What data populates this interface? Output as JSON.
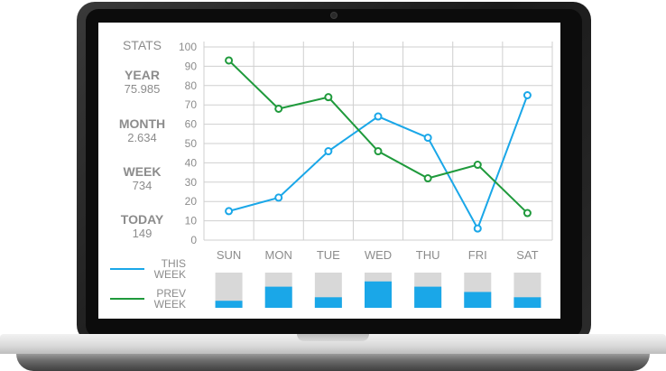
{
  "stats": {
    "title": "STATS",
    "items": [
      {
        "label": "YEAR",
        "value": "75.985"
      },
      {
        "label": "MONTH",
        "value": "2.634"
      },
      {
        "label": "WEEK",
        "value": "734"
      },
      {
        "label": "TODAY",
        "value": "149"
      }
    ]
  },
  "legend": {
    "this_week": {
      "line1": "THIS",
      "line2": "WEEK",
      "color": "#1aa7e8"
    },
    "prev_week": {
      "line1": "PREV",
      "line2": "WEEK",
      "color": "#1f9a3c"
    }
  },
  "chart_data": {
    "type": "line",
    "categories": [
      "SUN",
      "MON",
      "TUE",
      "WED",
      "THU",
      "FRI",
      "SAT"
    ],
    "yticks": [
      "0",
      "10",
      "20",
      "30",
      "40",
      "50",
      "60",
      "70",
      "80",
      "90",
      "100"
    ],
    "ylim": [
      0,
      100
    ],
    "series": [
      {
        "name": "THIS WEEK",
        "color": "#1aa7e8",
        "values": [
          15,
          22,
          46,
          64,
          53,
          6,
          75
        ]
      },
      {
        "name": "PREV WEEK",
        "color": "#1f9a3c",
        "values": [
          93,
          68,
          74,
          46,
          32,
          39,
          14
        ]
      }
    ],
    "bars": {
      "this_week_fraction": [
        0.2,
        0.6,
        0.3,
        0.75,
        0.6,
        0.45,
        0.3
      ],
      "fill_color": "#1aa7e8",
      "track_color": "#d8d8d8"
    }
  }
}
